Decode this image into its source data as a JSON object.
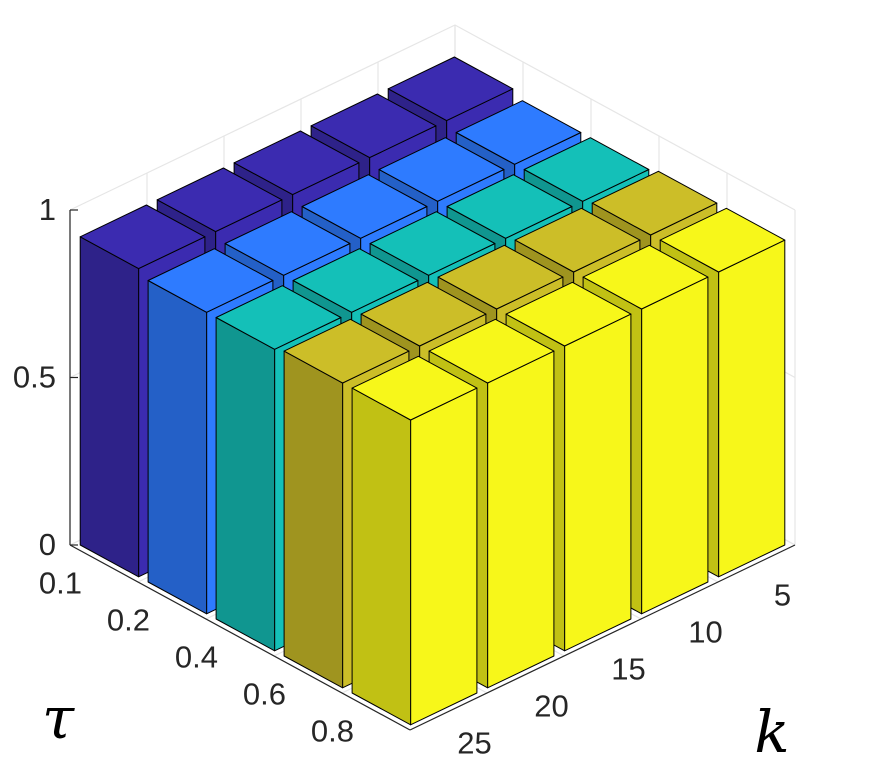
{
  "chart_data": {
    "type": "bar3d",
    "title": "",
    "xlabel": "τ",
    "ylabel": "k",
    "zlabel": "",
    "x_categories": [
      "0.1",
      "0.2",
      "0.4",
      "0.6",
      "0.8"
    ],
    "y_categories": [
      "5",
      "10",
      "15",
      "20",
      "25"
    ],
    "z_ticks": [
      "0",
      "0.5",
      "1"
    ],
    "zlim": [
      0,
      1
    ],
    "grid": true,
    "series": [
      {
        "tau": "0.1",
        "color": "#3b2bb0",
        "values": [
          0.92,
          0.92,
          0.92,
          0.92,
          0.92
        ]
      },
      {
        "tau": "0.2",
        "color": "#2e7bff",
        "values": [
          0.9,
          0.9,
          0.9,
          0.9,
          0.9
        ]
      },
      {
        "tau": "0.4",
        "color": "#14c0b8",
        "values": [
          0.9,
          0.9,
          0.9,
          0.9,
          0.9
        ]
      },
      {
        "tau": "0.6",
        "color": "#ccbe28",
        "values": [
          0.91,
          0.91,
          0.91,
          0.91,
          0.91
        ]
      },
      {
        "tau": "0.8",
        "color": "#f7f71a",
        "values": [
          0.91,
          0.91,
          0.91,
          0.91,
          0.91
        ]
      }
    ]
  }
}
